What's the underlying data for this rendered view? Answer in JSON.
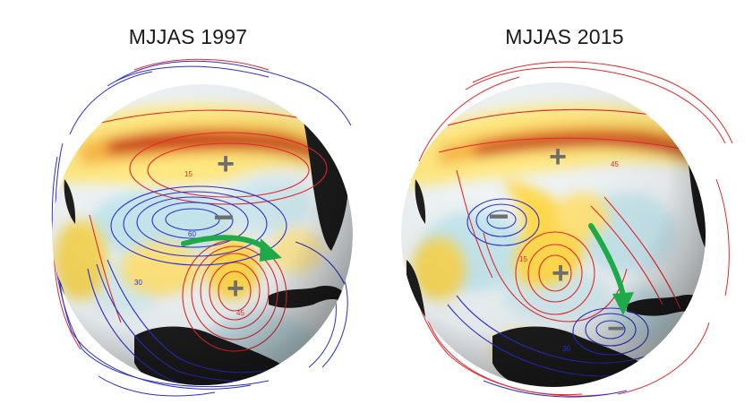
{
  "panels": [
    {
      "title": "MJJAS 1997",
      "contour_labels": [
        "15",
        "60",
        "30",
        "45"
      ],
      "anomaly_signs": [
        "+",
        "−",
        "+"
      ]
    },
    {
      "title": "MJJAS 2015",
      "contour_labels": [
        "45",
        "15",
        "30"
      ],
      "anomaly_signs": [
        "+",
        "−",
        "+",
        "−"
      ]
    }
  ],
  "colors": {
    "positive_contour": "#e8262a",
    "negative_contour": "#2b2fd1",
    "arrow": "#1faa4a",
    "sign": "#6e6e6e",
    "land": "#1c1c1c"
  }
}
